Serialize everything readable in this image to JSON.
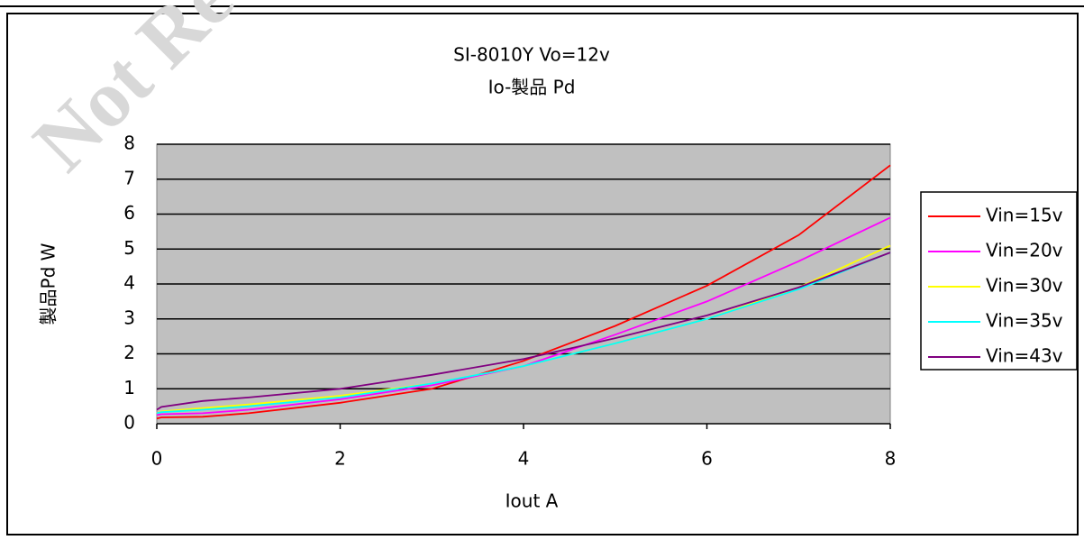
{
  "watermark": "Not Reco",
  "chart_data": {
    "type": "line",
    "title": "SI-8010Y Vo=12v",
    "subtitle": "Io-製品 Pd",
    "x_label": "Iout A",
    "y_label": "製品Pd W",
    "x": [
      0,
      0.05,
      0.5,
      1,
      2,
      3,
      4,
      5,
      6,
      7,
      8
    ],
    "series": [
      {
        "name": "Vin=15v",
        "color": "#ff0000",
        "values": [
          0.15,
          0.18,
          0.2,
          0.3,
          0.6,
          1.0,
          1.8,
          2.8,
          3.95,
          5.4,
          7.4
        ]
      },
      {
        "name": "Vin=20v",
        "color": "#ff00ff",
        "values": [
          0.25,
          0.27,
          0.3,
          0.4,
          0.7,
          1.1,
          1.65,
          2.55,
          3.5,
          4.65,
          5.9
        ]
      },
      {
        "name": "Vin=30v",
        "color": "#ffff00",
        "values": [
          0.3,
          0.35,
          0.45,
          0.55,
          0.8,
          1.15,
          1.65,
          2.3,
          3.0,
          3.9,
          5.1
        ]
      },
      {
        "name": "Vin=35v",
        "color": "#00ffff",
        "values": [
          0.3,
          0.33,
          0.4,
          0.5,
          0.75,
          1.15,
          1.65,
          2.3,
          3.0,
          3.85,
          4.9
        ]
      },
      {
        "name": "Vin=43v",
        "color": "#800080",
        "values": [
          0.4,
          0.48,
          0.65,
          0.75,
          1.0,
          1.4,
          1.85,
          2.45,
          3.1,
          3.9,
          4.9
        ]
      }
    ],
    "xlim": [
      0,
      8
    ],
    "xticks": [
      0,
      2,
      4,
      6,
      8
    ],
    "ylim": [
      0,
      8
    ],
    "yticks": [
      0,
      1,
      2,
      3,
      4,
      5,
      6,
      7,
      8
    ],
    "grid": true,
    "plot_background": "#c0c0c0",
    "legend": "right"
  }
}
